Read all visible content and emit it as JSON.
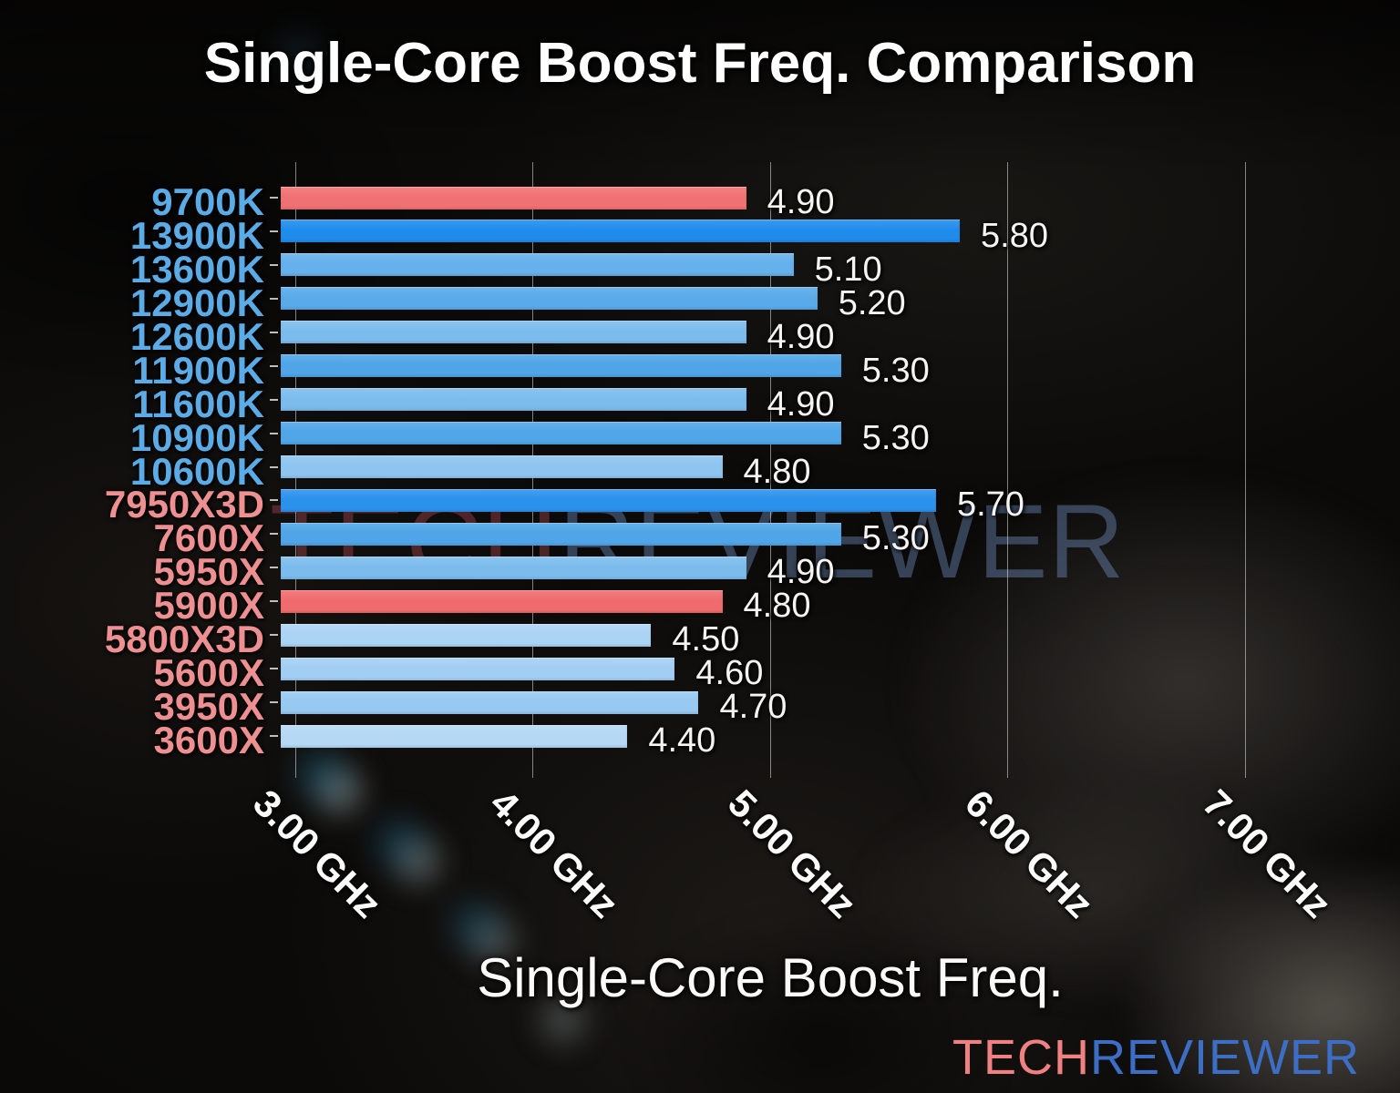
{
  "title": "Single-Core Boost Freq. Comparison",
  "watermark": {
    "part1": "TECH",
    "part2": "REVIEWER"
  },
  "logo": {
    "part1": "TECH",
    "part2": "REVIEWER"
  },
  "colors": {
    "intel_label": "#5bace6",
    "amd_label": "#ee8f91",
    "highlight_red": "#f07173",
    "strong_blue": "#1f8ceb",
    "gridline": "rgba(230,230,230,0.55)"
  },
  "chart_data": {
    "type": "bar",
    "orientation": "horizontal",
    "title": "Single-Core Boost Freq. Comparison",
    "xlabel": "Single-Core Boost Freq.",
    "x_unit": "GHz",
    "xlim": [
      2.94,
      7.5
    ],
    "grid": true,
    "legend_position": "none",
    "x_ticks": [
      {
        "value": 3.0,
        "label": "3.00 GHz"
      },
      {
        "value": 4.0,
        "label": "4.00 GHz"
      },
      {
        "value": 5.0,
        "label": "5.00 GHz"
      },
      {
        "value": 6.0,
        "label": "6.00 GHz"
      },
      {
        "value": 7.0,
        "label": "7.00 GHz"
      }
    ],
    "bars": [
      {
        "label": "9700K",
        "vendor": "intel",
        "value": 4.9,
        "value_label": "4.90",
        "bar_color": "#f07173",
        "label_color": "#5bace6"
      },
      {
        "label": "13900K",
        "vendor": "intel",
        "value": 5.8,
        "value_label": "5.80",
        "bar_color": "#1f8ceb",
        "label_color": "#5bace6"
      },
      {
        "label": "13600K",
        "vendor": "intel",
        "value": 5.1,
        "value_label": "5.10",
        "bar_color": "#66b0eb",
        "label_color": "#5bace6"
      },
      {
        "label": "12900K",
        "vendor": "intel",
        "value": 5.2,
        "value_label": "5.20",
        "bar_color": "#5aaae9",
        "label_color": "#5bace6"
      },
      {
        "label": "12600K",
        "vendor": "intel",
        "value": 4.9,
        "value_label": "4.90",
        "bar_color": "#7cbced",
        "label_color": "#5bace6"
      },
      {
        "label": "11900K",
        "vendor": "intel",
        "value": 5.3,
        "value_label": "5.30",
        "bar_color": "#4fa5e8",
        "label_color": "#5bace6"
      },
      {
        "label": "11600K",
        "vendor": "intel",
        "value": 4.9,
        "value_label": "4.90",
        "bar_color": "#7cbced",
        "label_color": "#5bace6"
      },
      {
        "label": "10900K",
        "vendor": "intel",
        "value": 5.3,
        "value_label": "5.30",
        "bar_color": "#4fa5e8",
        "label_color": "#5bace6"
      },
      {
        "label": "10600K",
        "vendor": "intel",
        "value": 4.8,
        "value_label": "4.80",
        "bar_color": "#8dc4f0",
        "label_color": "#5bace6"
      },
      {
        "label": "7950X3D",
        "vendor": "amd",
        "value": 5.7,
        "value_label": "5.70",
        "bar_color": "#2b92ec",
        "label_color": "#ee8f91"
      },
      {
        "label": "7600X",
        "vendor": "amd",
        "value": 5.3,
        "value_label": "5.30",
        "bar_color": "#4fa5e8",
        "label_color": "#ee8f91"
      },
      {
        "label": "5950X",
        "vendor": "amd",
        "value": 4.9,
        "value_label": "4.90",
        "bar_color": "#7cbced",
        "label_color": "#ee8f91"
      },
      {
        "label": "5900X",
        "vendor": "amd",
        "value": 4.8,
        "value_label": "4.80",
        "bar_color": "#f06b6d",
        "label_color": "#ee8f91"
      },
      {
        "label": "5800X3D",
        "vendor": "amd",
        "value": 4.5,
        "value_label": "4.50",
        "bar_color": "#abd3f4",
        "label_color": "#ee8f91"
      },
      {
        "label": "5600X",
        "vendor": "amd",
        "value": 4.6,
        "value_label": "4.60",
        "bar_color": "#a3cef3",
        "label_color": "#ee8f91"
      },
      {
        "label": "3950X",
        "vendor": "amd",
        "value": 4.7,
        "value_label": "4.70",
        "bar_color": "#98c9f1",
        "label_color": "#ee8f91"
      },
      {
        "label": "3600X",
        "vendor": "amd",
        "value": 4.4,
        "value_label": "4.40",
        "bar_color": "#b5d8f5",
        "label_color": "#ee8f91"
      }
    ]
  }
}
